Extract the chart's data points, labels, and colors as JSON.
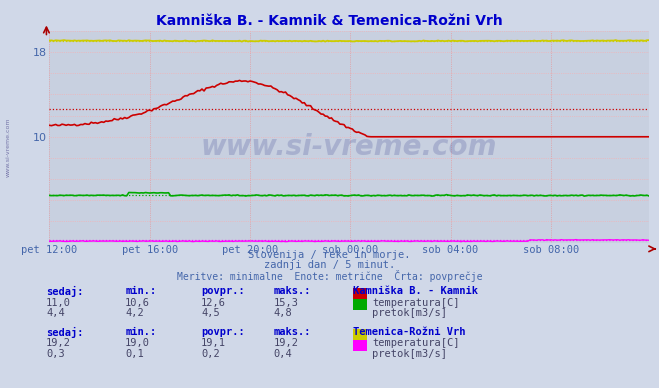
{
  "title": "Kamniška B. - Kamnik & Temenica-Rožni Vrh",
  "title_color": "#0000cc",
  "bg_color": "#d0d8e8",
  "plot_bg_color": "#c8d0e0",
  "x_label_color": "#4466aa",
  "subtitle1": "Slovenija / reke in morje.",
  "subtitle2": "zadnji dan / 5 minut.",
  "subtitle3": "Meritve: minimalne  Enote: metrične  Črta: povprečje",
  "x_tick_labels": [
    "pet 12:00",
    "pet 16:00",
    "pet 20:00",
    "sob 00:00",
    "sob 04:00",
    "sob 08:00"
  ],
  "x_tick_positions": [
    0,
    48,
    96,
    144,
    192,
    240
  ],
  "n_points": 288,
  "y_min": 0,
  "y_max": 20,
  "y_ticks_labeled": [
    10,
    18
  ],
  "y_ticks_grid": [
    0,
    2,
    4,
    6,
    8,
    10,
    12,
    14,
    16,
    18,
    20
  ],
  "kamnik_temp_color": "#cc0000",
  "kamnik_temp_avg": 12.6,
  "kamnik_flow_color": "#00aa00",
  "kamnik_flow_avg": 4.5,
  "temenica_temp_color": "#cccc00",
  "temenica_temp_avg": 19.1,
  "temenica_flow_color": "#ff00ff",
  "temenica_flow_avg": 0.2,
  "watermark_text": "www.si-vreme.com",
  "watermark_color": "#1a237e",
  "watermark_alpha": 0.18,
  "left_label": "www.si-vreme.com",
  "left_label_color": "#7777aa",
  "header_color": "#0000cc",
  "val_color": "#444466",
  "station1_name": "Kamniška B. - Kamnik",
  "station2_name": "Temenica-Rožni Vrh",
  "s1_sedaj_temp": "11,0",
  "s1_min_temp": "10,6",
  "s1_avg_temp": "12,6",
  "s1_max_temp": "15,3",
  "s1_sedaj_flow": "4,4",
  "s1_min_flow": "4,2",
  "s1_avg_flow": "4,5",
  "s1_max_flow": "4,8",
  "s2_sedaj_temp": "19,2",
  "s2_min_temp": "19,0",
  "s2_avg_temp": "19,1",
  "s2_max_temp": "19,2",
  "s2_sedaj_flow": "0,3",
  "s2_min_flow": "0,1",
  "s2_avg_flow": "0,2",
  "s2_max_flow": "0,4",
  "label_temp": "temperatura[C]",
  "label_flow": "pretok[m3/s]",
  "col_sedaj": "sedaj:",
  "col_min": "min.:",
  "col_povpr": "povpr.:",
  "col_maks": "maks.:"
}
